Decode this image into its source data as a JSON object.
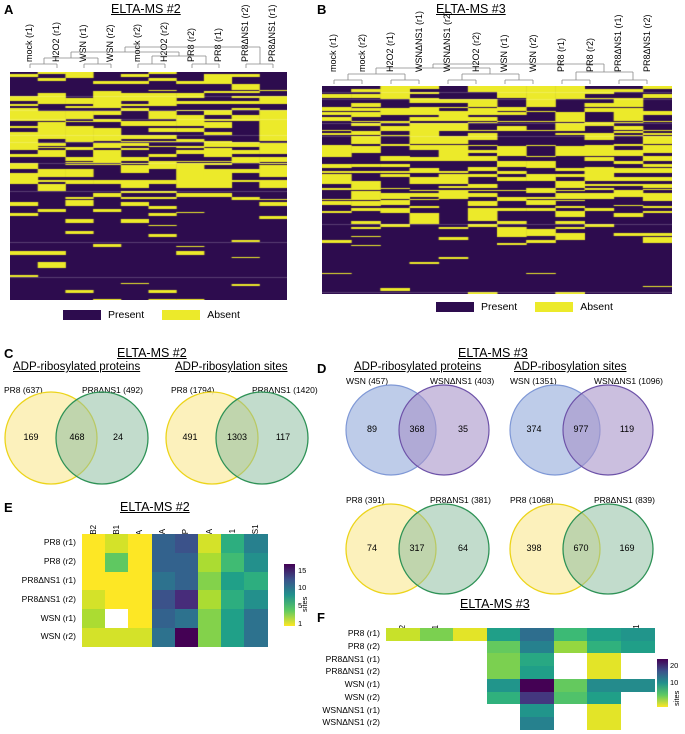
{
  "panels": {
    "A": {
      "label": "A",
      "title": "ELTA-MS #2",
      "samples": [
        "mock (r1)",
        "H2O2 (r1)",
        "WSN (r1)",
        "WSN (r2)",
        "mock (r2)",
        "H2O2 (r2)",
        "PR8 (r2)",
        "PR8 (r1)",
        "PR8ΔNS1 (r2)",
        "PR8ΔNS1 (r1)"
      ],
      "legend": {
        "present": "Present",
        "absent": "Absent"
      }
    },
    "B": {
      "label": "B",
      "title": "ELTA-MS #3",
      "samples": [
        "mock (r1)",
        "mock (r2)",
        "H2O2 (r1)",
        "WSNΔNS1 (r1)",
        "WSNΔNS1 (r2)",
        "H2O2 (r2)",
        "WSN (r1)",
        "WSN (r2)",
        "PR8 (r1)",
        "PR8 (r2)",
        "PR8ΔNS1 (r1)",
        "PR8ΔNS1 (r2)"
      ],
      "legend": {
        "present": "Present",
        "absent": "Absent"
      }
    },
    "C": {
      "label": "C",
      "title": "ELTA-MS #2",
      "sub1": "ADP-ribosylated proteins",
      "sub2": "ADP-ribosylation sites",
      "v1": {
        "left": "PR8 (637)",
        "right": "PR8ΔNS1 (492)",
        "a": "169",
        "ab": "468",
        "b": "24"
      },
      "v2": {
        "left": "PR8 (1794)",
        "right": "PR8ΔNS1 (1420)",
        "a": "491",
        "ab": "1303",
        "b": "117"
      }
    },
    "D": {
      "label": "D",
      "title": "ELTA-MS #3",
      "sub1": "ADP-ribosylated proteins",
      "sub2": "ADP-ribosylation sites",
      "v1": {
        "left": "WSN (457)",
        "right": "WSNΔNS1 (403)",
        "a": "89",
        "ab": "368",
        "b": "35"
      },
      "v2": {
        "left": "WSN (1351)",
        "right": "WSNΔNS1 (1096)",
        "a": "374",
        "ab": "977",
        "b": "119"
      },
      "v3": {
        "left": "PR8 (391)",
        "right": "PR8ΔNS1 (381)",
        "a": "74",
        "ab": "317",
        "b": "64"
      },
      "v4": {
        "left": "PR8 (1068)",
        "right": "PR8ΔNS1 (839)",
        "a": "398",
        "ab": "670",
        "b": "169"
      }
    },
    "E": {
      "label": "E",
      "title": "ELTA-MS #2",
      "cbar_label": "sites",
      "cbar_ticks": [
        "15",
        "10",
        "5",
        "1"
      ]
    },
    "F": {
      "label": "F",
      "title": "ELTA-MS #3",
      "cbar_label": "sites",
      "cbar_ticks": [
        "20",
        "10"
      ]
    }
  },
  "chart_data": [
    {
      "type": "heatmap",
      "title": "ELTA-MS #2",
      "panel": "E",
      "columns": [
        "PB2",
        "PB1",
        "PA",
        "HA",
        "NP",
        "NA",
        "M1",
        "NS1"
      ],
      "rows": [
        "PR8 (r1)",
        "PR8 (r2)",
        "PR8ΔNS1 (r1)",
        "PR8ΔNS1 (r2)",
        "WSN (r1)",
        "WSN (r2)"
      ],
      "values": [
        [
          1,
          2,
          1,
          12,
          13,
          2,
          7,
          10
        ],
        [
          1,
          5,
          1,
          12,
          12,
          3,
          6,
          9
        ],
        [
          1,
          1,
          1,
          11,
          12,
          4,
          8,
          7
        ],
        [
          2,
          1,
          1,
          13,
          15,
          3,
          7,
          9
        ],
        [
          3,
          null,
          1,
          12,
          11,
          4,
          8,
          11
        ],
        [
          2,
          2,
          2,
          11,
          17,
          4,
          8,
          11
        ]
      ],
      "range": [
        1,
        17
      ],
      "colorbar_label": "sites"
    },
    {
      "type": "heatmap",
      "title": "ELTA-MS #3",
      "panel": "F",
      "columns": [
        "PB2",
        "PB1",
        "PA",
        "HA",
        "NP",
        "NA",
        "M1",
        "NS1"
      ],
      "rows": [
        "PR8 (r1)",
        "PR8 (r2)",
        "PR8ΔNS1 (r1)",
        "PR8ΔNS1 (r2)",
        "WSN (r1)",
        "WSN (r2)",
        "WSNΔNS1 (r1)",
        "WSNΔNS1 (r2)"
      ],
      "values": [
        [
          3,
          6,
          2,
          12,
          17,
          9,
          12,
          13
        ],
        [
          null,
          null,
          null,
          7,
          15,
          5,
          10,
          12
        ],
        [
          null,
          null,
          null,
          6,
          11,
          null,
          2,
          null
        ],
        [
          null,
          null,
          null,
          6,
          12,
          null,
          2,
          null
        ],
        [
          null,
          null,
          null,
          13,
          26,
          7,
          14,
          14
        ],
        [
          null,
          null,
          null,
          10,
          22,
          8,
          12,
          null
        ],
        [
          null,
          null,
          null,
          null,
          13,
          null,
          2,
          null
        ],
        [
          null,
          null,
          null,
          null,
          15,
          null,
          2,
          null
        ]
      ],
      "range": [
        1,
        26
      ],
      "colorbar_label": "sites"
    }
  ]
}
